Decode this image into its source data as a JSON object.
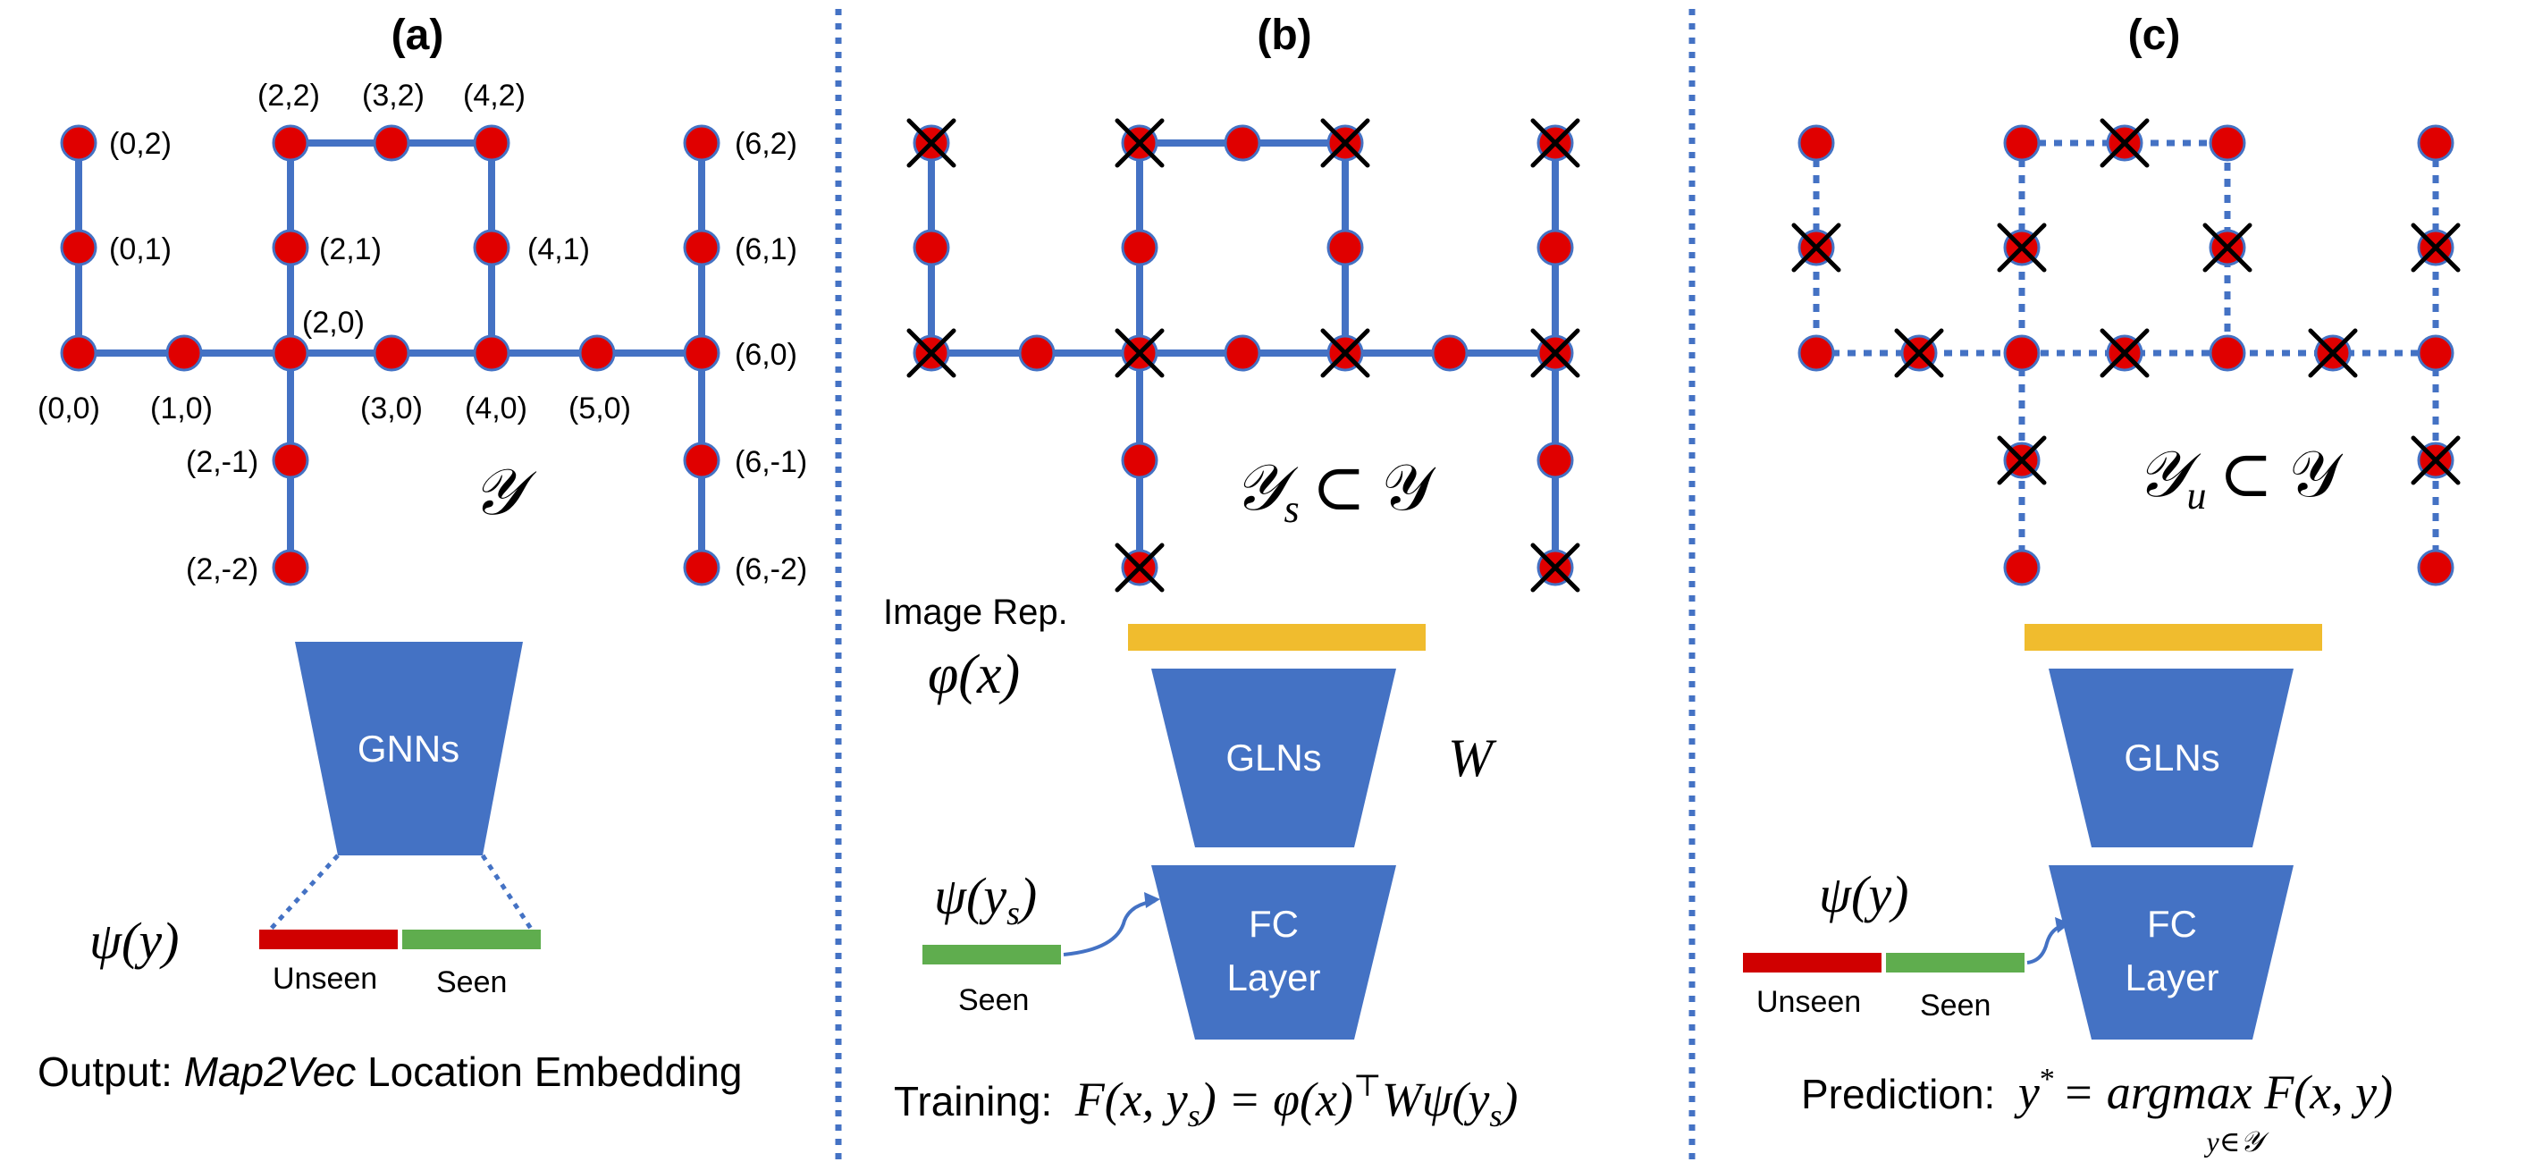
{
  "colors": {
    "edge": "#4472C4",
    "node": "#E00000",
    "node_stroke": "#4472C4",
    "cross": "#000000",
    "trapezoid": "#4472C4",
    "unseen_bar": "#D00000",
    "seen_bar": "#5FAD4E",
    "image_bar": "#F0BC2E",
    "divider": "#4472C4",
    "text": "#000000",
    "trap_text": "#ffffff"
  },
  "panels": {
    "a": {
      "label": "(a)",
      "space_label": "𝒴",
      "nodes": [
        "(0,2)",
        "(0,1)",
        "(0,0)",
        "(1,0)",
        "(2,0)",
        "(2,1)",
        "(2,2)",
        "(3,2)",
        "(4,2)",
        "(4,1)",
        "(4,0)",
        "(3,0)",
        "(5,0)",
        "(6,0)",
        "(6,1)",
        "(6,2)",
        "(2,-1)",
        "(2,-2)",
        "(6,-1)",
        "(6,-2)"
      ],
      "network_label": "GNNs",
      "psi_label": "ψ(y)",
      "unseen_label": "Unseen",
      "seen_label": "Seen",
      "output_prefix": "Output: ",
      "output_emph": "Map2Vec",
      "output_suffix": " Location Embedding"
    },
    "b": {
      "label": "(b)",
      "space_label": "𝒴",
      "space_sub": "s",
      "subset_of": "⊂ 𝒴",
      "image_rep_label": "Image Rep.",
      "phi_label": "φ(x)",
      "w_label": "W",
      "network_label": "GLNs",
      "fc_label_1": "FC",
      "fc_label_2": "Layer",
      "psi_label": "ψ(y",
      "psi_sub": "s",
      "psi_close": ")",
      "seen_label": "Seen",
      "training_prefix": "Training:",
      "training_formula": "F(x, y",
      "training_sub": "s",
      "training_eq": ") = φ(x)",
      "training_top": "⊤",
      "training_tail": "Wψ(y",
      "training_tail_sub": "s",
      "training_tail_close": ")"
    },
    "c": {
      "label": "(c)",
      "space_label": "𝒴",
      "space_sub": "u",
      "subset_of": "⊂ 𝒴",
      "network_label": "GLNs",
      "fc_label_1": "FC",
      "fc_label_2": "Layer",
      "psi_label": "ψ(y)",
      "unseen_label": "Unseen",
      "seen_label": "Seen",
      "prediction_prefix": "Prediction:",
      "prediction_y": "y",
      "prediction_star": "*",
      "prediction_eq": "= argmax F(x, y)",
      "prediction_under": "y∈𝒴"
    }
  }
}
